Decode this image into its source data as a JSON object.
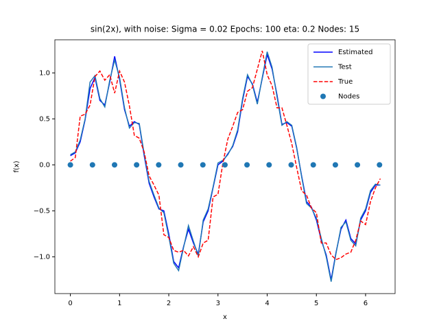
{
  "chart_data": {
    "type": "line",
    "title": "sin(2x), with noise: Sigma = 0.02 Epochs: 100 eta: 0.2 Nodes: 15",
    "x_label": "x",
    "y_label": "f(x)",
    "xlim": [
      -0.315,
      6.6
    ],
    "ylim": [
      -1.4,
      1.36
    ],
    "xticks": [
      0,
      1,
      2,
      3,
      4,
      5,
      6
    ],
    "yticks": [
      {
        "value": -1,
        "label": "−1.0"
      },
      {
        "value": -0.5,
        "label": "−0.5"
      },
      {
        "value": 0,
        "label": "0.0"
      },
      {
        "value": 0.5,
        "label": "0.5"
      },
      {
        "value": 1,
        "label": "1.0"
      }
    ],
    "legend": "upper right",
    "series": [
      {
        "name": "Estimated",
        "color": "#0000ff",
        "linestyle": "solid",
        "x": [
          0,
          0.1,
          0.2,
          0.3,
          0.4,
          0.5,
          0.6,
          0.7,
          0.8,
          0.9,
          1,
          1.1,
          1.2,
          1.3,
          1.4,
          1.5,
          1.6,
          1.7,
          1.8,
          1.9,
          2,
          2.1,
          2.2,
          2.3,
          2.4,
          2.5,
          2.6,
          2.7,
          2.8,
          2.9,
          3,
          3.1,
          3.2,
          3.3,
          3.4,
          3.5,
          3.6,
          3.7,
          3.8,
          3.9,
          4,
          4.1,
          4.2,
          4.3,
          4.4,
          4.5,
          4.6,
          4.7,
          4.8,
          4.9,
          5,
          5.1,
          5.2,
          5.3,
          5.4,
          5.5,
          5.6,
          5.7,
          5.8,
          5.9,
          6,
          6.1,
          6.2,
          6.3
        ],
        "values": [
          0.1,
          0.13,
          0.25,
          0.49,
          0.83,
          0.95,
          0.7,
          0.65,
          0.9,
          1.18,
          0.93,
          0.6,
          0.42,
          0.47,
          0.44,
          0.1,
          -0.2,
          -0.35,
          -0.48,
          -0.5,
          -0.75,
          -1.05,
          -1.12,
          -0.89,
          -0.7,
          -0.85,
          -0.97,
          -0.62,
          -0.5,
          -0.25,
          0.0,
          0.04,
          0.12,
          0.2,
          0.36,
          0.7,
          0.96,
          0.88,
          0.68,
          0.94,
          1.2,
          1.04,
          0.76,
          0.44,
          0.46,
          0.42,
          0.18,
          -0.12,
          -0.4,
          -0.46,
          -0.6,
          -0.82,
          -0.98,
          -1.25,
          -0.95,
          -0.7,
          -0.6,
          -0.8,
          -0.86,
          -0.6,
          -0.5,
          -0.3,
          -0.22,
          -0.22
        ]
      },
      {
        "name": "Test",
        "color": "#1f77b4",
        "linestyle": "solid",
        "x": [
          0,
          0.1,
          0.2,
          0.3,
          0.4,
          0.5,
          0.6,
          0.7,
          0.8,
          0.9,
          1,
          1.1,
          1.2,
          1.3,
          1.4,
          1.5,
          1.6,
          1.7,
          1.8,
          1.9,
          2,
          2.1,
          2.2,
          2.3,
          2.4,
          2.5,
          2.6,
          2.7,
          2.8,
          2.9,
          3,
          3.1,
          3.2,
          3.3,
          3.4,
          3.5,
          3.6,
          3.7,
          3.8,
          3.9,
          4,
          4.1,
          4.2,
          4.3,
          4.4,
          4.5,
          4.6,
          4.7,
          4.8,
          4.9,
          5,
          5.1,
          5.2,
          5.3,
          5.4,
          5.5,
          5.6,
          5.7,
          5.8,
          5.9,
          6,
          6.1,
          6.2,
          6.3
        ],
        "values": [
          0.11,
          0.14,
          0.27,
          0.5,
          0.9,
          0.97,
          0.72,
          0.63,
          0.92,
          1.14,
          0.95,
          0.62,
          0.4,
          0.46,
          0.45,
          0.12,
          -0.18,
          -0.33,
          -0.47,
          -0.52,
          -0.78,
          -1.07,
          -1.15,
          -0.9,
          -0.66,
          -0.83,
          -0.99,
          -0.6,
          -0.48,
          -0.24,
          0.02,
          0.05,
          0.11,
          0.21,
          0.38,
          0.72,
          0.98,
          0.87,
          0.66,
          0.95,
          1.23,
          1.06,
          0.74,
          0.43,
          0.47,
          0.43,
          0.19,
          -0.13,
          -0.42,
          -0.47,
          -0.58,
          -0.8,
          -1.0,
          -1.27,
          -0.96,
          -0.68,
          -0.62,
          -0.82,
          -0.88,
          -0.58,
          -0.48,
          -0.28,
          -0.21,
          -0.22
        ]
      },
      {
        "name": "True",
        "color": "#ff0000",
        "linestyle": "dashed",
        "x": [
          0,
          0.1,
          0.2,
          0.3,
          0.4,
          0.5,
          0.6,
          0.7,
          0.8,
          0.9,
          1,
          1.1,
          1.2,
          1.3,
          1.4,
          1.5,
          1.6,
          1.7,
          1.8,
          1.9,
          2,
          2.1,
          2.2,
          2.3,
          2.4,
          2.5,
          2.6,
          2.7,
          2.8,
          2.9,
          3,
          3.1,
          3.2,
          3.3,
          3.4,
          3.5,
          3.6,
          3.7,
          3.8,
          3.9,
          4,
          4.1,
          4.2,
          4.3,
          4.4,
          4.5,
          4.6,
          4.7,
          4.8,
          4.9,
          5,
          5.1,
          5.2,
          5.3,
          5.4,
          5.5,
          5.6,
          5.7,
          5.8,
          5.9,
          6,
          6.1,
          6.2,
          6.3
        ],
        "values": [
          0.04,
          0.08,
          0.53,
          0.55,
          0.65,
          0.96,
          1.02,
          0.92,
          0.98,
          0.78,
          1.02,
          0.9,
          0.64,
          0.32,
          0.29,
          0.14,
          -0.12,
          -0.22,
          -0.33,
          -0.76,
          -0.79,
          -0.93,
          -0.95,
          -0.93,
          -0.99,
          -0.89,
          -1.0,
          -0.85,
          -0.82,
          -0.35,
          -0.32,
          0.02,
          0.28,
          0.42,
          0.57,
          0.6,
          0.8,
          0.84,
          1.04,
          1.24,
          0.98,
          0.86,
          0.62,
          0.62,
          0.43,
          0.23,
          -0.03,
          -0.28,
          -0.33,
          -0.47,
          -0.52,
          -0.85,
          -0.85,
          -0.98,
          -1.03,
          -1.01,
          -0.97,
          -0.95,
          -0.82,
          -0.61,
          -0.65,
          -0.4,
          -0.25,
          -0.15
        ]
      },
      {
        "name": "Nodes",
        "color": "#1f77b4",
        "marker": "circle",
        "x": [
          0,
          0.449,
          0.898,
          1.346,
          1.795,
          2.244,
          2.693,
          3.142,
          3.59,
          4.039,
          4.488,
          4.937,
          5.386,
          5.834,
          6.283
        ],
        "values": [
          0,
          0,
          0,
          0,
          0,
          0,
          0,
          0,
          0,
          0,
          0,
          0,
          0,
          0,
          0
        ]
      }
    ]
  }
}
